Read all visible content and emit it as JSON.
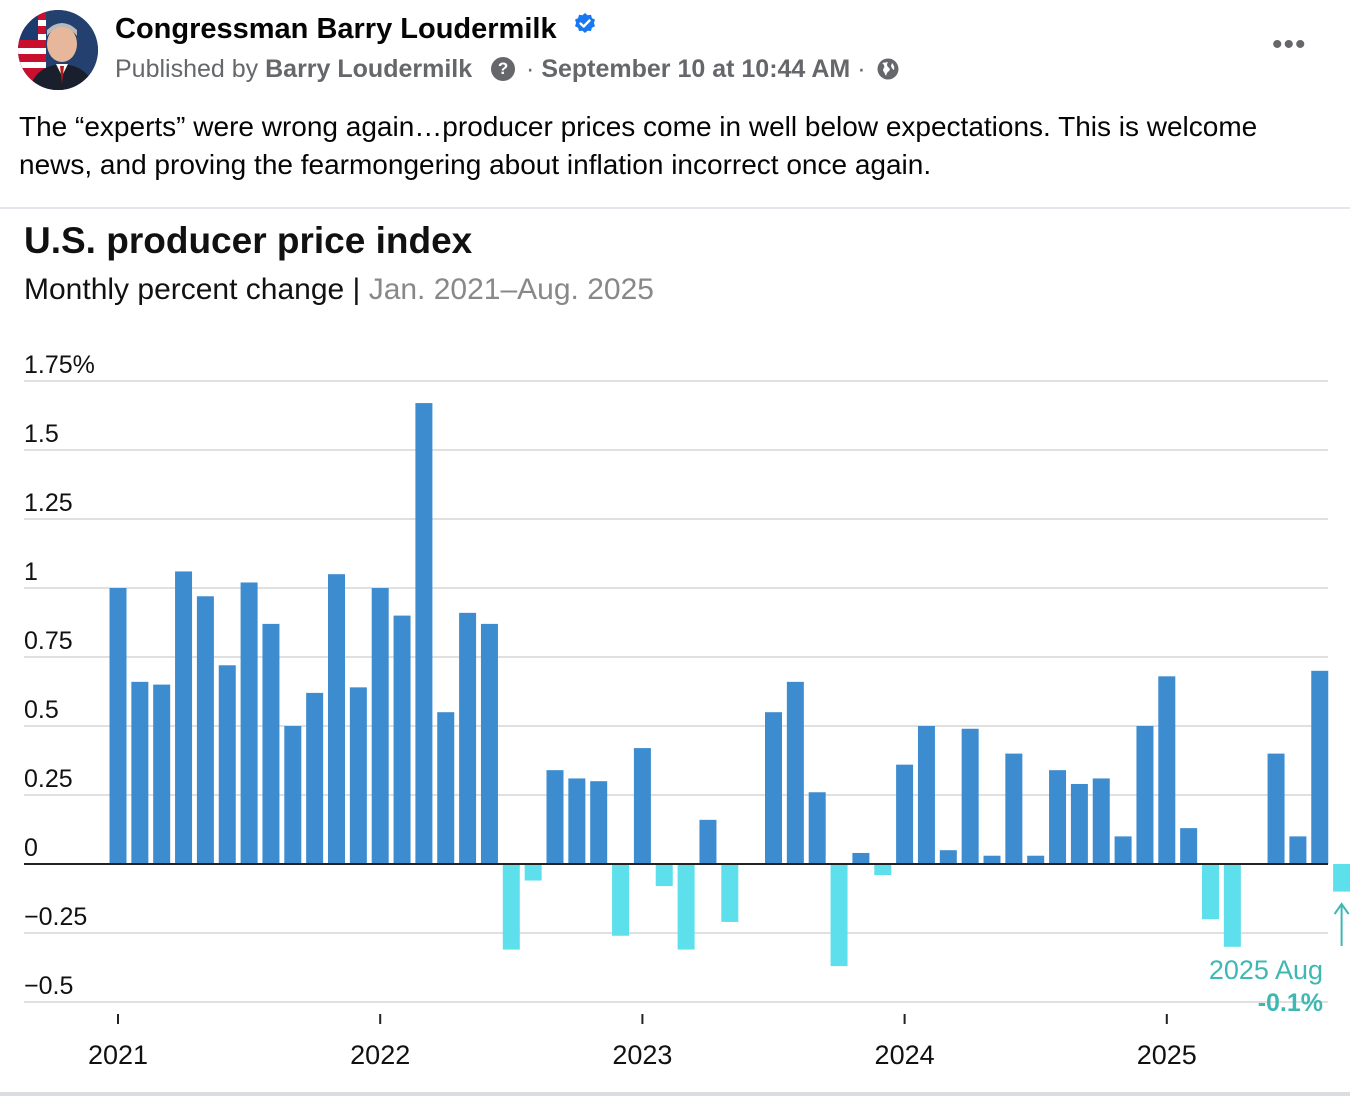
{
  "post": {
    "page_name": "Congressman Barry Loudermilk",
    "published_by_prefix": "Published by",
    "author": "Barry Loudermilk",
    "separator": "·",
    "timestamp": "September 10 at 10:44 AM",
    "separator2": "·",
    "more_label": "•••",
    "text": "The “experts” were wrong again…producer prices come in well below expectations. This is welcome news, and proving the fearmongering about inflation incorrect once again."
  },
  "icons": {
    "verified": "verified-badge-icon",
    "help": "question-icon",
    "audience": "globe-icon",
    "more": "more-icon"
  },
  "colors": {
    "positive_bar": "#3d8cd0",
    "negative_bar": "#5ee0ec",
    "annotation": "#3fb8b3"
  },
  "chart_data": {
    "type": "bar",
    "title": "U.S. producer price index",
    "subtitle": "Monthly percent change",
    "subtitle_separator": "|",
    "date_range": "Jan. 2021–Aug. 2025",
    "ylim": [
      -0.5,
      1.75
    ],
    "y_ticks": [
      {
        "value": 1.75,
        "label": "1.75%"
      },
      {
        "value": 1.5,
        "label": "1.5"
      },
      {
        "value": 1.25,
        "label": "1.25"
      },
      {
        "value": 1,
        "label": "1"
      },
      {
        "value": 0.75,
        "label": "0.75"
      },
      {
        "value": 0.5,
        "label": "0.5"
      },
      {
        "value": 0.25,
        "label": "0.25"
      },
      {
        "value": 0,
        "label": "0"
      },
      {
        "value": -0.25,
        "label": "−0.25"
      },
      {
        "value": -0.5,
        "label": "−0.5"
      }
    ],
    "x_ticks": [
      {
        "index": 0,
        "label": "2021"
      },
      {
        "index": 12,
        "label": "2022"
      },
      {
        "index": 24,
        "label": "2023"
      },
      {
        "index": 36,
        "label": "2024"
      },
      {
        "index": 48,
        "label": "2025"
      }
    ],
    "values": [
      1.0,
      0.66,
      0.65,
      1.06,
      0.97,
      0.72,
      1.02,
      0.87,
      0.5,
      0.62,
      1.05,
      0.64,
      1.0,
      0.9,
      1.67,
      0.55,
      0.91,
      0.87,
      -0.31,
      -0.06,
      0.34,
      0.31,
      0.3,
      -0.26,
      0.42,
      -0.08,
      -0.31,
      0.16,
      -0.21,
      0.0,
      0.55,
      0.66,
      0.26,
      -0.37,
      0.04,
      -0.04,
      0.36,
      0.5,
      0.05,
      0.49,
      0.03,
      0.4,
      0.03,
      0.34,
      0.29,
      0.31,
      0.1,
      0.5,
      0.68,
      0.13,
      -0.2,
      -0.3,
      0.0,
      0.4,
      0.1,
      0.7,
      -0.1
    ],
    "annotation": {
      "label": "2025 Aug",
      "value_label": "-0.1%",
      "index": 56
    }
  }
}
